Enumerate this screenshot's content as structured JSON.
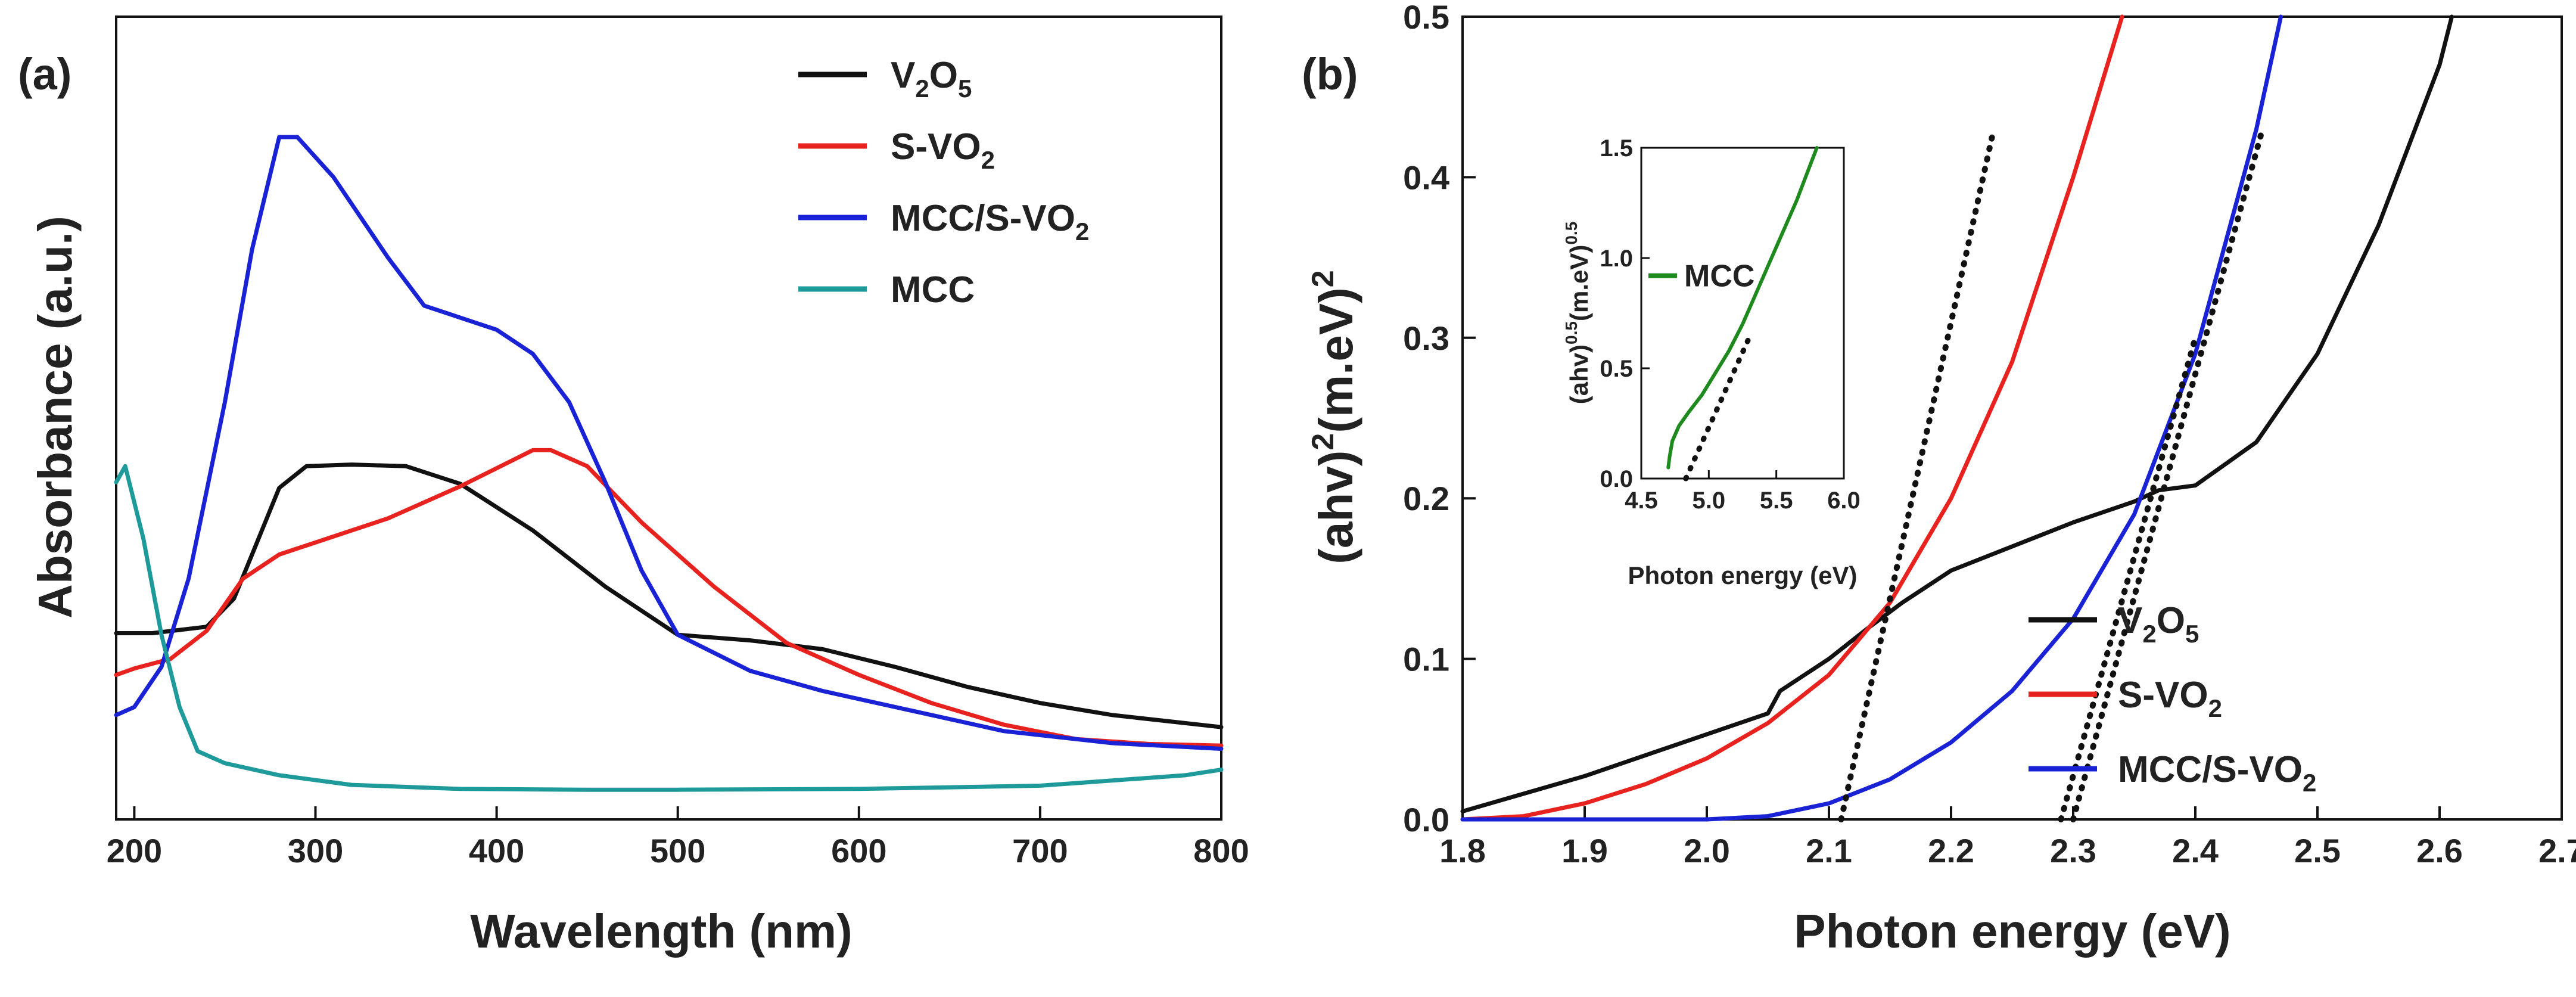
{
  "chart_data": [
    {
      "panel": "(a)",
      "type": "line",
      "title": "",
      "xlabel": "Wavelength (nm)",
      "ylabel": "Absorbance (a.u.)",
      "xlim": [
        190,
        800
      ],
      "ylim": [
        0,
        1
      ],
      "xticks": [
        200,
        300,
        400,
        500,
        600,
        700,
        800
      ],
      "yticks_shown": false,
      "legend_placement": "top-right",
      "series": [
        {
          "name": "V2O5",
          "label_parts": [
            [
              "V",
              ""
            ],
            [
              "2",
              "sub"
            ],
            [
              "O",
              ""
            ],
            [
              "5",
              "sub"
            ]
          ],
          "color": "#111111",
          "x": [
            190,
            210,
            240,
            255,
            265,
            280,
            295,
            320,
            350,
            380,
            420,
            460,
            500,
            540,
            580,
            620,
            660,
            700,
            740,
            800
          ],
          "y": [
            0.232,
            0.232,
            0.24,
            0.275,
            0.33,
            0.413,
            0.44,
            0.442,
            0.44,
            0.418,
            0.36,
            0.29,
            0.23,
            0.223,
            0.212,
            0.19,
            0.165,
            0.145,
            0.13,
            0.115
          ]
        },
        {
          "name": "S-VO2",
          "label_parts": [
            [
              "S-VO",
              ""
            ],
            [
              "2",
              "sub"
            ]
          ],
          "color": "#e8221f",
          "x": [
            190,
            200,
            220,
            240,
            260,
            280,
            300,
            340,
            380,
            420,
            430,
            450,
            480,
            520,
            560,
            600,
            640,
            680,
            720,
            760,
            800
          ],
          "y": [
            0.18,
            0.188,
            0.2,
            0.235,
            0.3,
            0.33,
            0.345,
            0.375,
            0.415,
            0.46,
            0.46,
            0.44,
            0.37,
            0.29,
            0.22,
            0.18,
            0.145,
            0.118,
            0.1,
            0.094,
            0.092
          ]
        },
        {
          "name": "MCC/S-VO2",
          "label_parts": [
            [
              "MCC/S-VO",
              ""
            ],
            [
              "2",
              "sub"
            ]
          ],
          "color": "#1a22d6",
          "x": [
            190,
            200,
            215,
            230,
            250,
            265,
            280,
            290,
            310,
            340,
            360,
            400,
            420,
            440,
            460,
            480,
            500,
            540,
            580,
            620,
            680,
            740,
            800
          ],
          "y": [
            0.13,
            0.14,
            0.19,
            0.3,
            0.52,
            0.71,
            0.85,
            0.85,
            0.8,
            0.7,
            0.64,
            0.61,
            0.58,
            0.52,
            0.42,
            0.31,
            0.23,
            0.185,
            0.16,
            0.14,
            0.11,
            0.095,
            0.088
          ]
        },
        {
          "name": "MCC",
          "label_parts": [
            [
              "MCC",
              ""
            ]
          ],
          "color": "#1f9a9a",
          "x": [
            190,
            195,
            205,
            215,
            225,
            235,
            250,
            280,
            320,
            380,
            450,
            500,
            600,
            700,
            780,
            800
          ],
          "y": [
            0.42,
            0.44,
            0.35,
            0.23,
            0.14,
            0.085,
            0.07,
            0.055,
            0.043,
            0.038,
            0.037,
            0.037,
            0.038,
            0.042,
            0.055,
            0.062
          ]
        }
      ]
    },
    {
      "panel": "(b)",
      "type": "line",
      "title": "",
      "xlabel": "Photon energy (eV)",
      "ylabel_parts": [
        [
          "(ahv)",
          ""
        ],
        [
          "2",
          "sup"
        ],
        [
          "(m.eV)",
          ""
        ],
        [
          "2",
          "sup"
        ]
      ],
      "xlim": [
        1.8,
        2.7
      ],
      "ylim": [
        0.0,
        0.5
      ],
      "xticks": [
        "1.8",
        "1.9",
        "2.0",
        "2.1",
        "2.2",
        "2.3",
        "2.4",
        "2.5",
        "2.6",
        "2.7"
      ],
      "yticks": [
        "0.0",
        "0.1",
        "0.2",
        "0.3",
        "0.4",
        "0.5"
      ],
      "legend_placement": "bottom-right",
      "series": [
        {
          "name": "V2O5",
          "label_parts": [
            [
              "V",
              ""
            ],
            [
              "2",
              "sub"
            ],
            [
              "O",
              ""
            ],
            [
              "5",
              "sub"
            ]
          ],
          "color": "#111111",
          "x": [
            1.8,
            1.85,
            1.9,
            1.95,
            2.0,
            2.05,
            2.06,
            2.08,
            2.1,
            2.13,
            2.16,
            2.2,
            2.25,
            2.3,
            2.35,
            2.37,
            2.4,
            2.45,
            2.5,
            2.55,
            2.6,
            2.61
          ],
          "y": [
            0.005,
            0.016,
            0.027,
            0.04,
            0.053,
            0.066,
            0.08,
            0.09,
            0.1,
            0.118,
            0.135,
            0.155,
            0.17,
            0.185,
            0.198,
            0.205,
            0.208,
            0.235,
            0.29,
            0.37,
            0.47,
            0.5
          ]
        },
        {
          "name": "S-VO2",
          "label_parts": [
            [
              "S-VO",
              ""
            ],
            [
              "2",
              "sub"
            ]
          ],
          "color": "#e8221f",
          "x": [
            1.8,
            1.85,
            1.9,
            1.95,
            2.0,
            2.05,
            2.1,
            2.15,
            2.2,
            2.25,
            2.3,
            2.34
          ],
          "y": [
            0.0,
            0.002,
            0.01,
            0.022,
            0.038,
            0.06,
            0.09,
            0.135,
            0.2,
            0.285,
            0.4,
            0.5
          ]
        },
        {
          "name": "MCC/S-VO2",
          "label_parts": [
            [
              "MCC/S-VO",
              ""
            ],
            [
              "2",
              "sub"
            ]
          ],
          "color": "#1a22d6",
          "x": [
            1.8,
            2.0,
            2.05,
            2.1,
            2.15,
            2.2,
            2.25,
            2.3,
            2.35,
            2.4,
            2.45,
            2.47
          ],
          "y": [
            0.0,
            0.0,
            0.002,
            0.01,
            0.025,
            0.048,
            0.08,
            0.125,
            0.19,
            0.29,
            0.43,
            0.5
          ]
        },
        {
          "name": "S-VO2 tangent",
          "color": "#111111",
          "dashed": true,
          "legend": false,
          "x": [
            2.11,
            2.235
          ],
          "y": [
            0.0,
            0.43
          ]
        },
        {
          "name": "MCC/S-VO2 tangent",
          "color": "#111111",
          "dashed": true,
          "legend": false,
          "x": [
            2.29,
            2.4
          ],
          "y": [
            0.0,
            0.3
          ]
        },
        {
          "name": "V2O5 tangent",
          "color": "#111111",
          "dashed": true,
          "legend": false,
          "x": [
            2.3,
            2.455
          ],
          "y": [
            0.0,
            0.43
          ]
        }
      ],
      "inset": {
        "type": "line",
        "xlabel": "Photon energy (eV)",
        "ylabel_parts": [
          [
            "(ahv)",
            ""
          ],
          [
            "0.5",
            "sup"
          ],
          [
            "(m.eV)",
            ""
          ],
          [
            "0.5",
            "sup"
          ]
        ],
        "xlim": [
          4.5,
          6.0
        ],
        "ylim": [
          0.0,
          1.5
        ],
        "xticks": [
          "4.5",
          "5.0",
          "5.5",
          "6.0"
        ],
        "yticks": [
          "0.0",
          "0.5",
          "1.0",
          "1.5"
        ],
        "series": [
          {
            "name": "MCC",
            "label_parts": [
              [
                "MCC",
                ""
              ]
            ],
            "color": "#1e8a1e",
            "x": [
              4.7,
              4.71,
              4.73,
              4.78,
              4.85,
              4.95,
              5.05,
              5.15,
              5.25,
              5.35,
              5.45,
              5.55,
              5.65,
              5.75,
              5.8
            ],
            "y": [
              0.05,
              0.1,
              0.17,
              0.24,
              0.3,
              0.38,
              0.48,
              0.58,
              0.7,
              0.84,
              0.98,
              1.12,
              1.26,
              1.42,
              1.5
            ]
          },
          {
            "name": "MCC tangent",
            "color": "#111111",
            "dashed": true,
            "legend": false,
            "x": [
              4.83,
              5.3
            ],
            "y": [
              0.0,
              0.64
            ]
          }
        ]
      }
    }
  ]
}
